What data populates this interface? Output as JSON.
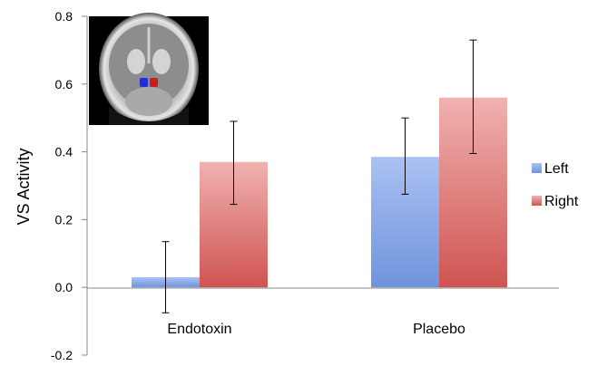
{
  "chart_data": {
    "type": "bar",
    "title": "",
    "xlabel": "",
    "ylabel": "VS Activity",
    "ylim": [
      -0.2,
      0.8
    ],
    "yticks": [
      "-0.2",
      "0.0",
      "0.2",
      "0.4",
      "0.6",
      "0.8"
    ],
    "grid": false,
    "legend_position": "right",
    "categories": [
      "Endotoxin",
      "Placebo"
    ],
    "series": [
      {
        "name": "Left",
        "values": [
          0.03,
          0.385
        ],
        "err_low": [
          -0.075,
          0.275
        ],
        "err_high": [
          0.135,
          0.5
        ],
        "color": "#7f9fe0"
      },
      {
        "name": "Right",
        "values": [
          0.37,
          0.56
        ],
        "err_low": [
          0.245,
          0.395
        ],
        "err_high": [
          0.49,
          0.73
        ],
        "color": "#d96a6a"
      }
    ],
    "inset": "brain-coronal-slice-image"
  }
}
